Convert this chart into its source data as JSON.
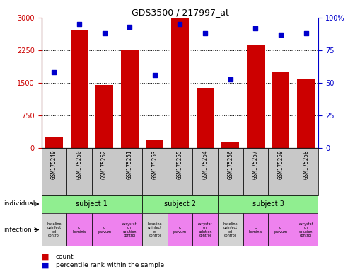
{
  "title": "GDS3500 / 217997_at",
  "samples": [
    "GSM175249",
    "GSM175250",
    "GSM175252",
    "GSM175251",
    "GSM175253",
    "GSM175255",
    "GSM175254",
    "GSM175256",
    "GSM175257",
    "GSM175259",
    "GSM175258"
  ],
  "counts": [
    270,
    2700,
    1450,
    2250,
    200,
    2980,
    1380,
    150,
    2380,
    1750,
    1600
  ],
  "percentile_ranks": [
    58,
    95,
    88,
    93,
    56,
    95,
    88,
    53,
    92,
    87,
    88
  ],
  "count_color": "#cc0000",
  "percentile_color": "#0000cc",
  "ylim_left": [
    0,
    3000
  ],
  "ylim_right": [
    0,
    100
  ],
  "yticks_left": [
    0,
    750,
    1500,
    2250,
    3000
  ],
  "yticks_right": [
    0,
    25,
    50,
    75,
    100
  ],
  "ytick_labels_left": [
    "0",
    "750",
    "1500",
    "2250",
    "3000"
  ],
  "ytick_labels_right": [
    "0",
    "25",
    "50",
    "75",
    "100%"
  ],
  "subjects": [
    {
      "label": "subject 1",
      "start": 0,
      "end": 4
    },
    {
      "label": "subject 2",
      "start": 4,
      "end": 7
    },
    {
      "label": "subject 3",
      "start": 7,
      "end": 11
    }
  ],
  "infections": [
    {
      "label": "baseline\nuninfect\ned\ncontrol",
      "col": "#d3d3d3"
    },
    {
      "label": "c.\nhominis",
      "col": "#ee82ee"
    },
    {
      "label": "c.\nparvum",
      "col": "#ee82ee"
    },
    {
      "label": "excystat\non\nsolution\ncontrol",
      "col": "#ee82ee"
    },
    {
      "label": "baseline\nuninfect\ned\ncontrol",
      "col": "#d3d3d3"
    },
    {
      "label": "c.\nparvum",
      "col": "#ee82ee"
    },
    {
      "label": "excystat\non\nsolution\ncontrol",
      "col": "#ee82ee"
    },
    {
      "label": "baseline\nuninfect\ned\ncontrol",
      "col": "#d3d3d3"
    },
    {
      "label": "c.\nhominis",
      "col": "#ee82ee"
    },
    {
      "label": "c.\nparvum",
      "col": "#ee82ee"
    },
    {
      "label": "excystat\non\nsolution\ncontrol",
      "col": "#ee82ee"
    }
  ],
  "subject_color": "#90ee90",
  "sample_bg_color": "#c8c8c8",
  "legend_count_color": "#cc0000",
  "legend_percentile_color": "#0000cc",
  "bg_white": "#ffffff"
}
